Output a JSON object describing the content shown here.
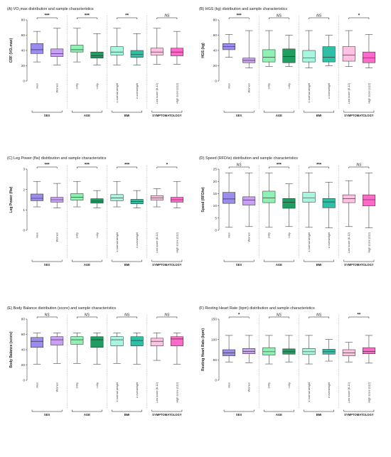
{
  "chart_data": [
    {
      "type": "boxplot",
      "title": "(A) VO₂max distribution and sample characteristics",
      "ylabel": "CRF (VO₂max)",
      "ylim": [
        0,
        80
      ],
      "yticks": [
        0,
        20,
        40,
        60,
        80
      ],
      "groups": [
        {
          "name": "SEX",
          "sig": "***",
          "categories": [
            "Men",
            "Women"
          ]
        },
        {
          "name": "AGE",
          "sig": "***",
          "categories": [
            "≥40y",
            "<40y"
          ]
        },
        {
          "name": "BMI",
          "sig": "**",
          "categories": [
            "≤ normal weight",
            "≥ overweight"
          ]
        },
        {
          "name": "SYMPTOMATOLOGY",
          "sig": "NS",
          "categories": [
            "Low score (6-12)",
            "High score (≥12)"
          ]
        }
      ],
      "boxes": [
        {
          "min": 25,
          "q1": 36,
          "median": 41,
          "q3": 49,
          "max": 65
        },
        {
          "min": 21,
          "q1": 32,
          "median": 36,
          "q3": 42,
          "max": 69
        },
        {
          "min": 25,
          "q1": 38,
          "median": 41,
          "q3": 47,
          "max": 69
        },
        {
          "min": 21,
          "q1": 30,
          "median": 33,
          "q3": 38,
          "max": 62
        },
        {
          "min": 21,
          "q1": 34,
          "median": 38,
          "q3": 45,
          "max": 69
        },
        {
          "min": 21,
          "q1": 31,
          "median": 35,
          "q3": 40,
          "max": 62
        },
        {
          "min": 22,
          "q1": 34,
          "median": 38,
          "q3": 43,
          "max": 69
        },
        {
          "min": 22,
          "q1": 33,
          "median": 38,
          "q3": 43,
          "max": 65
        }
      ]
    },
    {
      "type": "boxplot",
      "title": "(B) HGS (kg) distribution and sample characteristics",
      "ylabel": "HGS (kg)",
      "ylim": [
        0,
        80
      ],
      "yticks": [
        0,
        20,
        40,
        60,
        80
      ],
      "groups": [
        {
          "name": "SEX",
          "sig": "***",
          "categories": [
            "Men",
            "Women"
          ]
        },
        {
          "name": "AGE",
          "sig": "NS",
          "categories": [
            "≥40y",
            "<40y"
          ]
        },
        {
          "name": "BMI",
          "sig": "NS",
          "categories": [
            "≤ normal weight",
            "≥ overweight"
          ]
        },
        {
          "name": "SYMPTOMATOLOGY",
          "sig": "*",
          "categories": [
            "Low score (6-12)",
            "High score (≥12)"
          ]
        }
      ],
      "boxes": [
        {
          "min": 31,
          "q1": 41,
          "median": 45,
          "q3": 49,
          "max": 61
        },
        {
          "min": 17,
          "q1": 24,
          "median": 27,
          "q3": 30,
          "max": 66
        },
        {
          "min": 19,
          "q1": 25,
          "median": 31,
          "q3": 41,
          "max": 66
        },
        {
          "min": 19,
          "q1": 24,
          "median": 32,
          "q3": 42,
          "max": 60
        },
        {
          "min": 17,
          "q1": 25,
          "median": 30,
          "q3": 40,
          "max": 66
        },
        {
          "min": 20,
          "q1": 25,
          "median": 31,
          "q3": 45,
          "max": 60
        },
        {
          "min": 19,
          "q1": 26,
          "median": 34,
          "q3": 45,
          "max": 66
        },
        {
          "min": 17,
          "q1": 24,
          "median": 30,
          "q3": 38,
          "max": 61
        }
      ]
    },
    {
      "type": "boxplot",
      "title": "(C) Leg Power (flw) distribution and sample characteristics",
      "ylabel": "Leg Power (flw)",
      "ylim": [
        0,
        3
      ],
      "yticks": [
        0,
        1,
        2,
        3
      ],
      "groups": [
        {
          "name": "SEX",
          "sig": "***",
          "categories": [
            "Men",
            "Women"
          ]
        },
        {
          "name": "AGE",
          "sig": "***",
          "categories": [
            "≥40y",
            "<40y"
          ]
        },
        {
          "name": "BMI",
          "sig": "***",
          "categories": [
            "≤ normal weight",
            "≥ overweight"
          ]
        },
        {
          "name": "SYMPTOMATOLOGY",
          "sig": "*",
          "categories": [
            "Low score (6-12)",
            "High score (≥12)"
          ]
        }
      ],
      "boxes": [
        {
          "min": 1.15,
          "q1": 1.45,
          "median": 1.57,
          "q3": 1.78,
          "max": 2.4
        },
        {
          "min": 1.1,
          "q1": 1.38,
          "median": 1.5,
          "q3": 1.62,
          "max": 2.3
        },
        {
          "min": 1.15,
          "q1": 1.48,
          "median": 1.62,
          "q3": 1.8,
          "max": 2.4
        },
        {
          "min": 1.1,
          "q1": 1.33,
          "median": 1.43,
          "q3": 1.55,
          "max": 1.95
        },
        {
          "min": 1.15,
          "q1": 1.45,
          "median": 1.58,
          "q3": 1.75,
          "max": 2.4
        },
        {
          "min": 1.1,
          "q1": 1.3,
          "median": 1.42,
          "q3": 1.52,
          "max": 1.95
        },
        {
          "min": 1.15,
          "q1": 1.48,
          "median": 1.58,
          "q3": 1.7,
          "max": 2.05
        },
        {
          "min": 1.1,
          "q1": 1.38,
          "median": 1.5,
          "q3": 1.62,
          "max": 2.4
        }
      ]
    },
    {
      "type": "boxplot",
      "title": "(D) Speed (RFD/w) distribution and sample characteristics",
      "ylabel": "Speed (RFD/w)",
      "ylim": [
        0,
        25
      ],
      "yticks": [
        0,
        5,
        10,
        15,
        20,
        25
      ],
      "groups": [
        {
          "name": "SEX",
          "sig": "NS",
          "categories": [
            "Men",
            "Women"
          ]
        },
        {
          "name": "AGE",
          "sig": "***",
          "categories": [
            "≥40y",
            "<40y"
          ]
        },
        {
          "name": "BMI",
          "sig": "***",
          "categories": [
            "≤ normal weight",
            "≥ overweight"
          ]
        },
        {
          "name": "SYMPTOMATOLOGY",
          "sig": "NS",
          "categories": [
            "Low score (6-12)",
            "High score (≥12)"
          ]
        }
      ],
      "boxes": [
        {
          "min": 1.2,
          "q1": 11,
          "median": 12.8,
          "q3": 15.5,
          "max": 23.5
        },
        {
          "min": 1.5,
          "q1": 10.3,
          "median": 12.4,
          "q3": 13.7,
          "max": 23.5
        },
        {
          "min": 1.2,
          "q1": 11.3,
          "median": 13.2,
          "q3": 16,
          "max": 23.5
        },
        {
          "min": 1.5,
          "q1": 9,
          "median": 11.5,
          "q3": 13,
          "max": 19
        },
        {
          "min": 1.2,
          "q1": 11.5,
          "median": 13.3,
          "q3": 15.5,
          "max": 23.5
        },
        {
          "min": 1,
          "q1": 9.2,
          "median": 11.6,
          "q3": 13,
          "max": 19.7
        },
        {
          "min": 1.5,
          "q1": 11.3,
          "median": 13,
          "q3": 14.5,
          "max": 20.3
        },
        {
          "min": 1,
          "q1": 10,
          "median": 12.5,
          "q3": 14.5,
          "max": 23.5
        }
      ]
    },
    {
      "type": "boxplot",
      "title": "(E) Body Balance distribution (score) and sample characteristics",
      "ylabel": "Body Balance (score)",
      "ylim": [
        0,
        80
      ],
      "yticks": [
        0,
        20,
        40,
        60,
        80
      ],
      "groups": [
        {
          "name": "SEX",
          "sig": "NS",
          "categories": [
            "Men",
            "Women"
          ]
        },
        {
          "name": "AGE",
          "sig": "NS",
          "categories": [
            "≥40y",
            "<40y"
          ]
        },
        {
          "name": "BMI",
          "sig": "NS",
          "categories": [
            "≤ normal weight",
            "≥ overweight"
          ]
        },
        {
          "name": "SYMPTOMATOLOGY",
          "sig": "NS",
          "categories": [
            "Low score (6-12)",
            "High score (≥12)"
          ]
        }
      ],
      "boxes": [
        {
          "min": 21,
          "q1": 43,
          "median": 51,
          "q3": 56,
          "max": 62
        },
        {
          "min": 22,
          "q1": 46,
          "median": 53,
          "q3": 57,
          "max": 62
        },
        {
          "min": 22,
          "q1": 47,
          "median": 53,
          "q3": 57,
          "max": 62
        },
        {
          "min": 21,
          "q1": 43,
          "median": 53,
          "q3": 57,
          "max": 62
        },
        {
          "min": 22,
          "q1": 45,
          "median": 53,
          "q3": 57,
          "max": 62
        },
        {
          "min": 21,
          "q1": 45,
          "median": 52,
          "q3": 57,
          "max": 62
        },
        {
          "min": 26,
          "q1": 45,
          "median": 51,
          "q3": 55,
          "max": 62
        },
        {
          "min": 21,
          "q1": 45,
          "median": 54,
          "q3": 57,
          "max": 62
        }
      ]
    },
    {
      "type": "boxplot",
      "title": "(F) Resting Heart Rate (bpm) distribution and sample characteristics",
      "ylabel": "Resting Heart Rate (bpm)",
      "ylim": [
        0,
        150
      ],
      "yticks": [
        0,
        50,
        100,
        150
      ],
      "groups": [
        {
          "name": "SEX",
          "sig": "*",
          "categories": [
            "Men",
            "Women"
          ]
        },
        {
          "name": "AGE",
          "sig": "NS",
          "categories": [
            "≥40y",
            "<40y"
          ]
        },
        {
          "name": "BMI",
          "sig": "NS",
          "categories": [
            "≤ normal weight",
            "≥ overweight"
          ]
        },
        {
          "name": "SYMPTOMATOLOGY",
          "sig": "**",
          "categories": [
            "Low score (6-12)",
            "High score (≥12)"
          ]
        }
      ],
      "boxes": [
        {
          "min": 45,
          "q1": 60,
          "median": 67,
          "q3": 75,
          "max": 110
        },
        {
          "min": 43,
          "q1": 65,
          "median": 71,
          "q3": 78,
          "max": 110
        },
        {
          "min": 40,
          "q1": 62,
          "median": 70,
          "q3": 80,
          "max": 110
        },
        {
          "min": 45,
          "q1": 64,
          "median": 70,
          "q3": 77,
          "max": 110
        },
        {
          "min": 40,
          "q1": 63,
          "median": 70,
          "q3": 78,
          "max": 110
        },
        {
          "min": 47,
          "q1": 64,
          "median": 70,
          "q3": 76,
          "max": 100
        },
        {
          "min": 45,
          "q1": 60,
          "median": 67,
          "q3": 75,
          "max": 93
        },
        {
          "min": 42,
          "q1": 65,
          "median": 71,
          "q3": 80,
          "max": 110
        }
      ]
    }
  ],
  "colors": {
    "box_fill": [
      "#9b8cf0",
      "#c9a0f5",
      "#8ff2b4",
      "#1e9e60",
      "#a8f6df",
      "#2ec0a4",
      "#ffc2e2",
      "#ff69c9"
    ],
    "box_stroke": "#222222",
    "axis": "#444444",
    "separator": "#888888"
  }
}
